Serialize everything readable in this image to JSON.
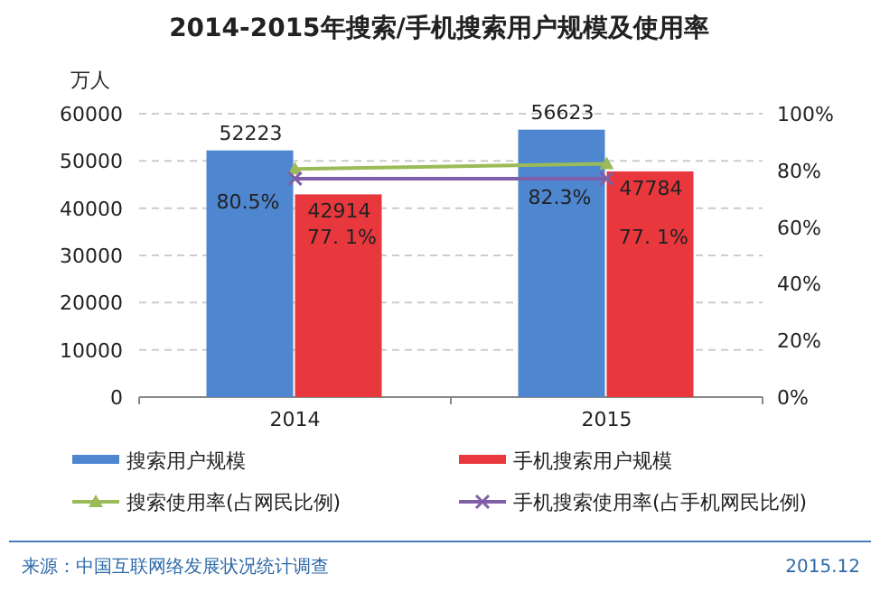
{
  "chart_data": {
    "type": "bar",
    "title": "2014-2015年搜索/手机搜索用户规模及使用率",
    "ylabel": "万人",
    "categories": [
      "2014",
      "2015"
    ],
    "series": [
      {
        "name": "搜索用户规模",
        "color": "#4f86d0",
        "values": [
          52223,
          56623
        ],
        "value_labels": [
          "52223",
          "56623"
        ]
      },
      {
        "name": "手机搜索用户规模",
        "color": "#e8383d",
        "values": [
          42914,
          47784
        ],
        "value_labels": [
          "42914",
          "47784"
        ]
      },
      {
        "name": "搜索使用率(占网民比例)",
        "type": "line",
        "axis": "y2",
        "marker": "triangle",
        "color": "#9bbb59",
        "values": [
          80.5,
          82.3
        ],
        "value_labels": [
          "80.5%",
          "82.3%"
        ]
      },
      {
        "name": "手机搜索使用率(占手机网民比例)",
        "type": "line",
        "axis": "y2",
        "marker": "cross",
        "color": "#7f5fa8",
        "values": [
          77.1,
          77.1
        ],
        "value_labels": [
          "77. 1%",
          "77. 1%"
        ]
      }
    ],
    "ylim": [
      0,
      60000
    ],
    "yticks": [
      0,
      10000,
      20000,
      30000,
      40000,
      50000,
      60000
    ],
    "y2lim": [
      0,
      100
    ],
    "y2ticks": [
      {
        "value": 0,
        "label": "0%"
      },
      {
        "value": 20,
        "label": "20%"
      },
      {
        "value": 40,
        "label": "40%"
      },
      {
        "value": 60,
        "label": "60%"
      },
      {
        "value": 80,
        "label": "80%"
      },
      {
        "value": 100,
        "label": "100%"
      }
    ],
    "grid": "y",
    "legend": "bottom",
    "annotations": [
      "来源：中国互联网络发展状况统计调查",
      "2015.12"
    ]
  }
}
